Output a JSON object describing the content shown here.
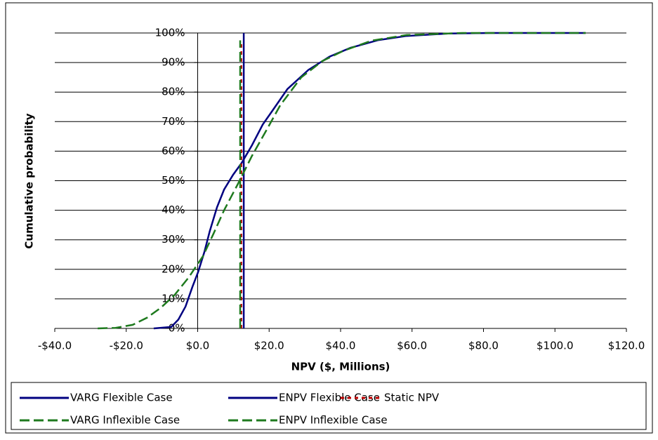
{
  "chart_data": {
    "type": "line",
    "x_label": "NPV ($, Millions)",
    "y_label": "Cumulative probability",
    "xlim": [
      -40,
      120
    ],
    "xticks": [
      {
        "value": -40,
        "label": "-$40.0"
      },
      {
        "value": -20,
        "label": "-$20.0"
      },
      {
        "value": 0,
        "label": "$0.0"
      },
      {
        "value": 20,
        "label": "$20.0"
      },
      {
        "value": 40,
        "label": "$40.0"
      },
      {
        "value": 60,
        "label": "$60.0"
      },
      {
        "value": 80,
        "label": "$80.0"
      },
      {
        "value": 100,
        "label": "$100.0"
      },
      {
        "value": 120,
        "label": "$120.0"
      }
    ],
    "ylim": [
      0,
      100
    ],
    "yticks": [
      {
        "value": 0,
        "label": "0%"
      },
      {
        "value": 10,
        "label": "10%"
      },
      {
        "value": 20,
        "label": "20%"
      },
      {
        "value": 30,
        "label": "30%"
      },
      {
        "value": 40,
        "label": "40%"
      },
      {
        "value": 50,
        "label": "50%"
      },
      {
        "value": 60,
        "label": "60%"
      },
      {
        "value": 70,
        "label": "70%"
      },
      {
        "value": 80,
        "label": "80%"
      },
      {
        "value": 90,
        "label": "90%"
      },
      {
        "value": 100,
        "label": "100%"
      }
    ],
    "grid": true,
    "legend": "bottom",
    "series": [
      {
        "name": "VARG Flexible Case",
        "color": "#000080",
        "style": "solid",
        "x": [
          -12.3,
          -7.4,
          -5.4,
          -3.4,
          -1.5,
          0.1,
          1.9,
          3.4,
          5.4,
          7.4,
          9.9,
          12.3,
          15.2,
          18.2,
          21.1,
          25.1,
          31,
          36.9,
          42.8,
          50.6,
          58.5,
          70,
          82,
          108.6
        ],
        "values": [
          0,
          0.5,
          3,
          7.4,
          14,
          19,
          26,
          33,
          41,
          47,
          52,
          56,
          62,
          69,
          74,
          81,
          87.5,
          92,
          95,
          97.6,
          99,
          99.8,
          100,
          100
        ]
      },
      {
        "name": "ENPV Flexible Case",
        "color": "#000080",
        "style": "solid",
        "x": [
          12.9,
          12.9
        ],
        "values": [
          0,
          100
        ]
      },
      {
        "name": "Static NPV",
        "color": "#c00000",
        "style": "dotted",
        "x": [
          12.2,
          12.2
        ],
        "values": [
          0,
          97
        ]
      },
      {
        "name": "VARG Inflexible Case",
        "color": "#1e7a1e",
        "style": "dashed",
        "x": [
          -28,
          -23,
          -18.2,
          -14.2,
          -10.3,
          -6.4,
          -2.5,
          1.5,
          4.4,
          7.4,
          11.3,
          15.2,
          19.2,
          23.1,
          29,
          34.9,
          40.8,
          48.7,
          58.5,
          74,
          108.6
        ],
        "values": [
          0,
          0.2,
          1.2,
          3.6,
          7,
          11.4,
          17.3,
          24.5,
          32,
          40,
          49,
          58.4,
          67,
          75.5,
          85,
          90.5,
          94,
          97.4,
          99.3,
          100,
          100
        ]
      },
      {
        "name": "ENPV Inflexible Case",
        "color": "#1e7a1e",
        "style": "dashed",
        "x": [
          11.9,
          11.9
        ],
        "values": [
          0,
          97.5
        ]
      }
    ]
  }
}
